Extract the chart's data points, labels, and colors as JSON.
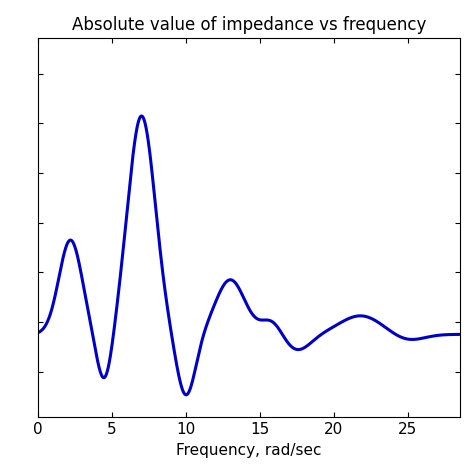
{
  "title": "Absolute value of impedance vs frequency",
  "xlabel": "Frequency, rad/sec",
  "line_color": "#0000CC",
  "line_width": 2.2,
  "xlim": [
    0,
    28.5
  ],
  "xticks": [
    0,
    5,
    10,
    15,
    20,
    25
  ],
  "background_color": "#ffffff",
  "title_fontsize": 12,
  "tick_fontsize": 11
}
